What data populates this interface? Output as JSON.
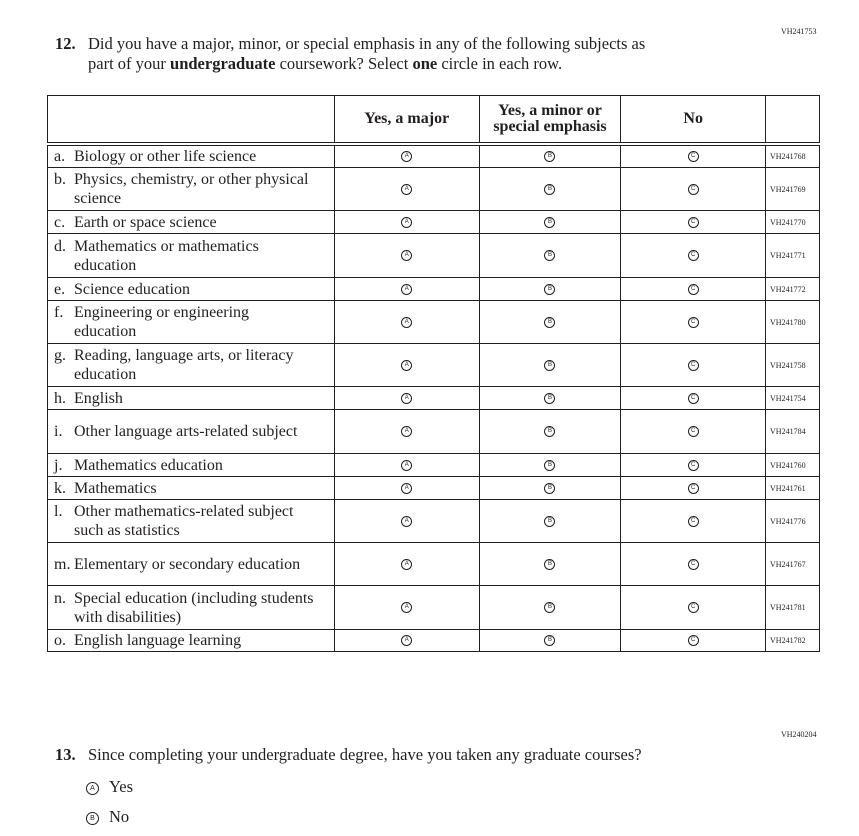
{
  "q12": {
    "code": "VH241753",
    "number": "12.",
    "line1_a": "Did you have a major, minor, or special emphasis in any of the following subjects as",
    "line2_a": "part of your ",
    "line2_b": "undergraduate",
    "line2_c": " coursework? Select ",
    "line2_d": "one",
    "line2_e": " circle in each row.",
    "columns": [
      "Yes, a major",
      "Yes, a minor or special emphasis",
      "No"
    ],
    "bubbles": [
      "A",
      "B",
      "C"
    ],
    "rows": [
      {
        "letter": "a.",
        "label": "Biology or other life science",
        "code": "VH241768"
      },
      {
        "letter": "b.",
        "label": "Physics, chemistry, or other physical science",
        "code": "VH241769"
      },
      {
        "letter": "c.",
        "label": "Earth or space science",
        "code": "VH241770"
      },
      {
        "letter": "d.",
        "label": "Mathematics or mathematics education",
        "code": "VH241771"
      },
      {
        "letter": "e.",
        "label": "Science education",
        "code": "VH241772"
      },
      {
        "letter": "f.",
        "label": "Engineering or engineering education",
        "code": "VH241780"
      },
      {
        "letter": "g.",
        "label": "Reading, language arts, or literacy education",
        "code": "VH241758"
      },
      {
        "letter": "h.",
        "label": "English",
        "code": "VH241754"
      },
      {
        "letter": "i.",
        "label": "Other language arts-related subject",
        "code": "VH241784"
      },
      {
        "letter": "j.",
        "label": "Mathematics education",
        "code": "VH241760"
      },
      {
        "letter": "k.",
        "label": "Mathematics",
        "code": "VH241761"
      },
      {
        "letter": "l.",
        "label": "Other mathematics-related subject such as statistics",
        "code": "VH241776"
      },
      {
        "letter": "m.",
        "label": "Elementary or secondary education",
        "code": "VH241767"
      },
      {
        "letter": "n.",
        "label": "Special education (including students with disabilities)",
        "code": "VH241781"
      },
      {
        "letter": "o.",
        "label": "English language learning",
        "code": "VH241782"
      }
    ]
  },
  "q13": {
    "code": "VH240204",
    "number": "13.",
    "text": "Since completing your undergraduate degree, have you taken any graduate courses?",
    "options": [
      {
        "bubble": "A",
        "label": "Yes"
      },
      {
        "bubble": "B",
        "label": "No"
      }
    ]
  }
}
